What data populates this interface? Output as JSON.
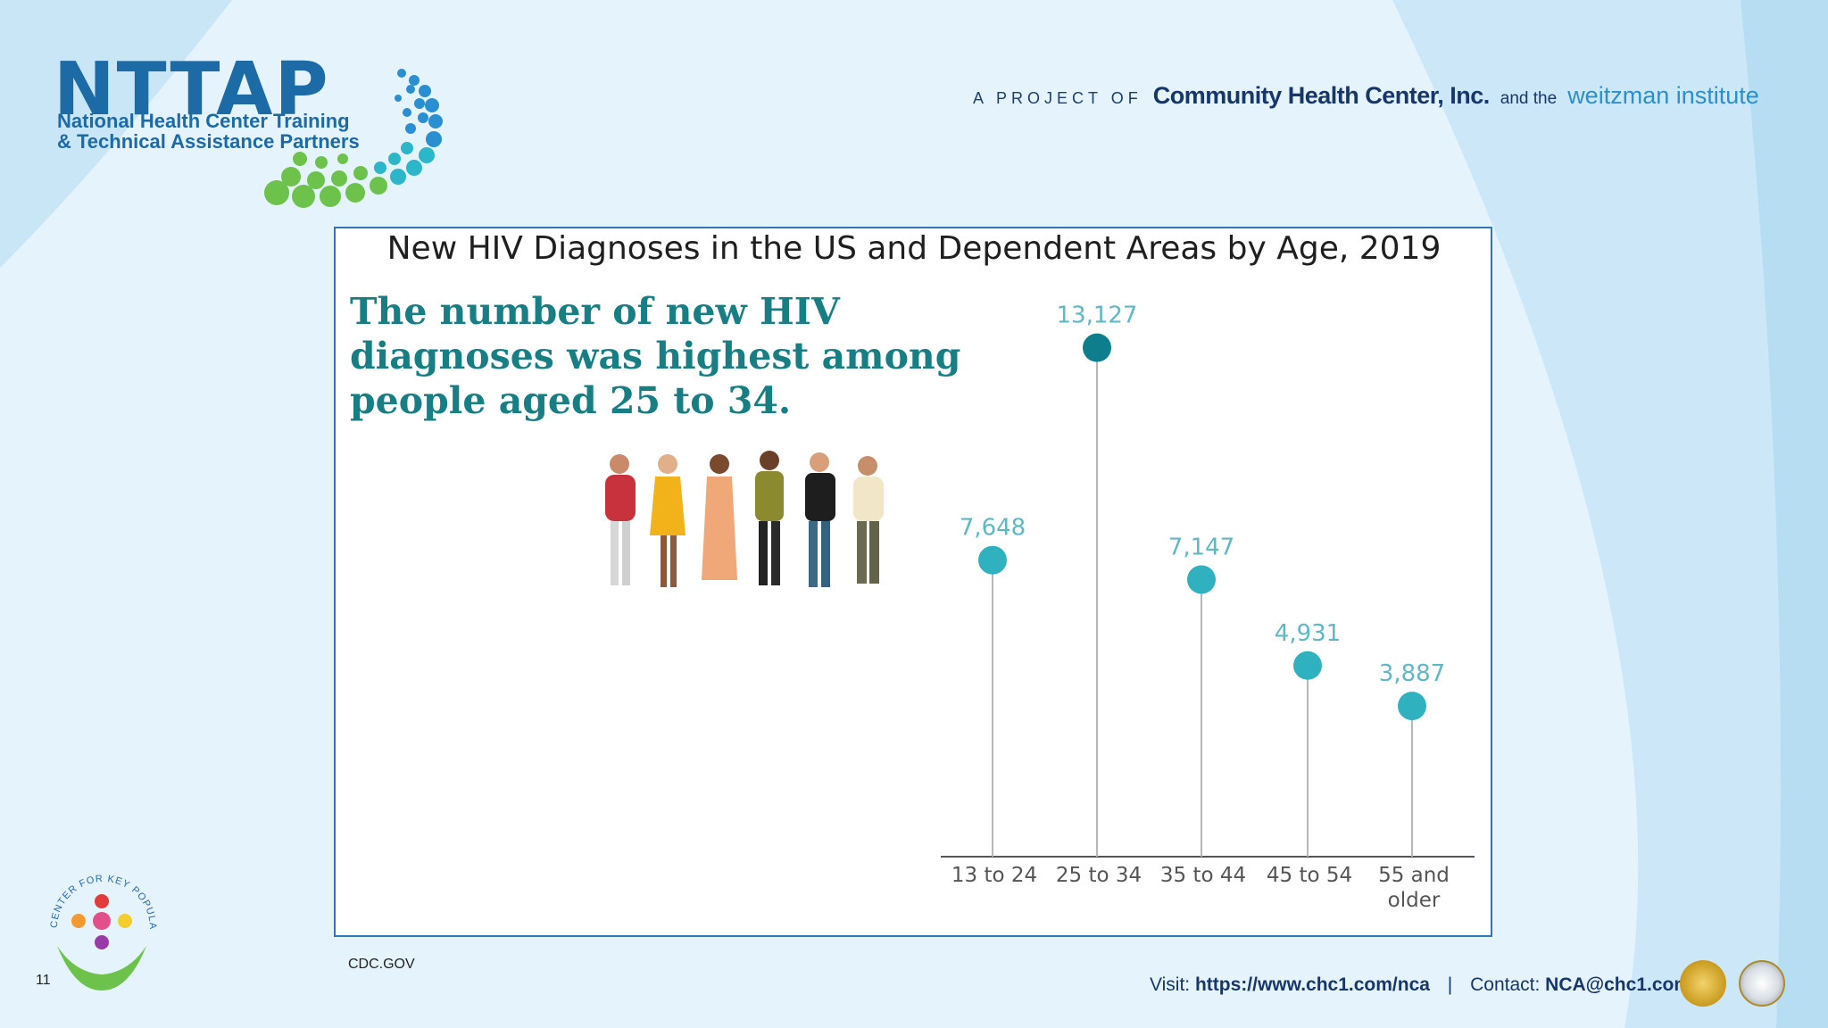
{
  "header": {
    "logo_title": "NTTAP",
    "logo_sub_line1": "National Health Center Training",
    "logo_sub_line2": "& Technical Assistance Partners",
    "project_prefix": "A PROJECT OF",
    "chc_name": "Community Health Center, Inc.",
    "and_the": "and the",
    "weitzman": "weitzman institute"
  },
  "slide": {
    "headline_line1": "The number of new HIV",
    "headline_line2": "diagnoses was highest among",
    "headline_line3": "people aged 25 to 34.",
    "source": "CDC.GOV",
    "page_number": "11"
  },
  "footer": {
    "visit_label": "Visit:",
    "visit_url": "https://www.chc1.com/nca",
    "separator": "|",
    "contact_label": "Contact:",
    "contact_email": "NCA@chc1.com"
  },
  "colors": {
    "accent_teal": "#177f84",
    "dot_light": "#2fb1c0",
    "dot_dark": "#0e7d8c",
    "brand_blue": "#1c6aa6"
  },
  "chart_data": {
    "type": "scatter",
    "title": "New HIV Diagnoses in the US and Dependent Areas by Age, 2019",
    "categories": [
      "13 to 24",
      "25 to 34",
      "35 to 44",
      "45 to 54",
      "55 and older"
    ],
    "category_lines": [
      [
        "13 to 24"
      ],
      [
        "25 to 34"
      ],
      [
        "35 to 44"
      ],
      [
        "45 to 54"
      ],
      [
        "55 and",
        "older"
      ]
    ],
    "values": [
      7648,
      13127,
      7147,
      4931,
      3887
    ],
    "value_labels": [
      "7,648",
      "13,127",
      "7,147",
      "4,931",
      "3,887"
    ],
    "highlight_index": 1,
    "ylim": [
      0,
      14500
    ],
    "grid": false,
    "xlabel": "",
    "ylabel": ""
  }
}
